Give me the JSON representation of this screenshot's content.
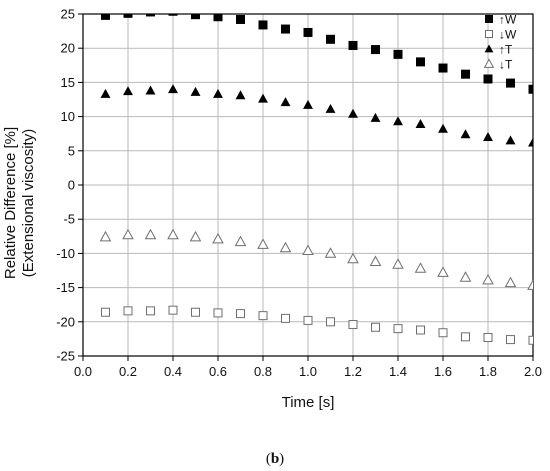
{
  "chart_data": {
    "type": "scatter",
    "xlabel": "Time [s]",
    "ylabel": [
      "Relative Difference [%]",
      "(Extensional viscosity)"
    ],
    "xlim": [
      0.0,
      2.0
    ],
    "ylim": [
      -25,
      25
    ],
    "x_ticks": [
      "0.0",
      "0.2",
      "0.4",
      "0.6",
      "0.8",
      "1.0",
      "1.2",
      "1.4",
      "1.6",
      "1.8",
      "2.0"
    ],
    "y_ticks": [
      "25",
      "20",
      "15",
      "10",
      "5",
      "0",
      "-5",
      "-10",
      "-15",
      "-20",
      "-25"
    ],
    "grid": true,
    "legend_position": "top-right",
    "series": [
      {
        "name": "↑W",
        "marker": "square-filled",
        "color": "#000000",
        "x": [
          0.1,
          0.2,
          0.3,
          0.4,
          0.5,
          0.6,
          0.7,
          0.8,
          0.9,
          1.0,
          1.1,
          1.2,
          1.3,
          1.4,
          1.5,
          1.6,
          1.7,
          1.8,
          1.9,
          2.0
        ],
        "y": [
          24.8,
          25.1,
          25.3,
          25.4,
          24.9,
          24.6,
          24.2,
          23.4,
          22.8,
          22.3,
          21.3,
          20.4,
          19.8,
          19.1,
          18.0,
          17.1,
          16.2,
          15.5,
          14.9,
          14.0
        ]
      },
      {
        "name": "↓W",
        "marker": "square-open",
        "color": "#6e6e6e",
        "x": [
          0.1,
          0.2,
          0.3,
          0.4,
          0.5,
          0.6,
          0.7,
          0.8,
          0.9,
          1.0,
          1.1,
          1.2,
          1.3,
          1.4,
          1.5,
          1.6,
          1.7,
          1.8,
          1.9,
          2.0
        ],
        "y": [
          -18.6,
          -18.4,
          -18.4,
          -18.3,
          -18.6,
          -18.7,
          -18.8,
          -19.1,
          -19.5,
          -19.8,
          -20.0,
          -20.4,
          -20.8,
          -21.0,
          -21.2,
          -21.6,
          -22.2,
          -22.3,
          -22.6,
          -22.7
        ]
      },
      {
        "name": "↑T",
        "marker": "triangle-filled",
        "color": "#000000",
        "x": [
          0.1,
          0.2,
          0.3,
          0.4,
          0.5,
          0.6,
          0.7,
          0.8,
          0.9,
          1.0,
          1.1,
          1.2,
          1.3,
          1.4,
          1.5,
          1.6,
          1.7,
          1.8,
          1.9,
          2.0
        ],
        "y": [
          13.3,
          13.7,
          13.8,
          14.0,
          13.6,
          13.3,
          13.1,
          12.6,
          12.1,
          11.7,
          11.1,
          10.4,
          9.8,
          9.3,
          8.9,
          8.2,
          7.4,
          7.0,
          6.5,
          6.2
        ]
      },
      {
        "name": "↓T",
        "marker": "triangle-open",
        "color": "#6e6e6e",
        "x": [
          0.1,
          0.2,
          0.3,
          0.4,
          0.5,
          0.6,
          0.7,
          0.8,
          0.9,
          1.0,
          1.1,
          1.2,
          1.3,
          1.4,
          1.5,
          1.6,
          1.7,
          1.8,
          1.9,
          2.0
        ],
        "y": [
          -7.6,
          -7.3,
          -7.3,
          -7.3,
          -7.6,
          -7.9,
          -8.3,
          -8.7,
          -9.2,
          -9.6,
          -10.0,
          -10.8,
          -11.2,
          -11.6,
          -12.2,
          -12.8,
          -13.5,
          -13.9,
          -14.3,
          -14.7
        ]
      }
    ]
  },
  "caption": {
    "open": "(",
    "letter": "b",
    "close": ")"
  }
}
